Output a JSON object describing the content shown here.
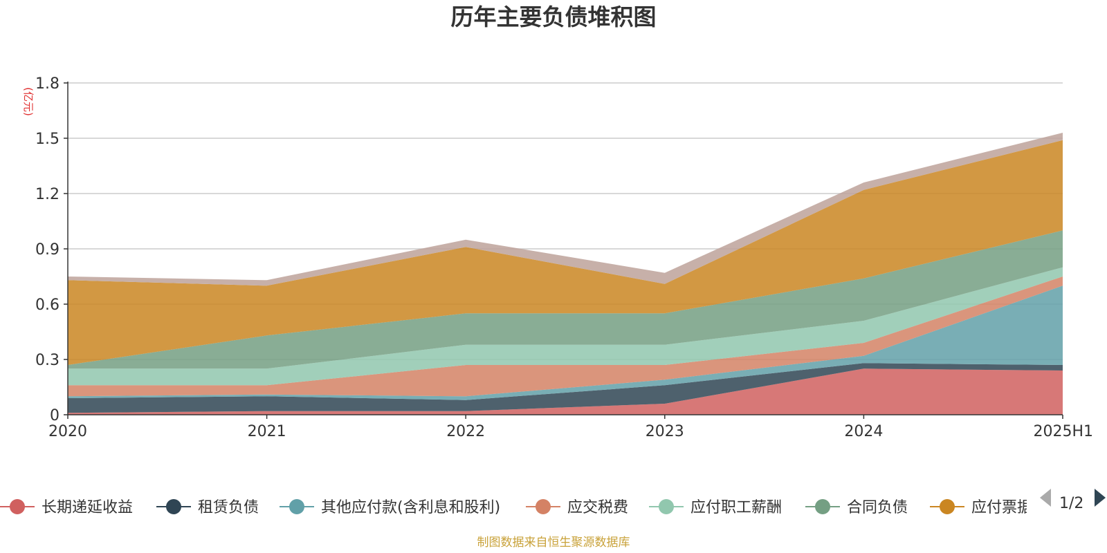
{
  "chart_data": {
    "type": "area",
    "stacked": true,
    "title": "历年主要负债堆积图",
    "unit_label": "(亿元)",
    "categories": [
      "2020",
      "2021",
      "2022",
      "2023",
      "2024",
      "2025H1"
    ],
    "ylim": [
      0,
      1.8
    ],
    "y_ticks": [
      "0",
      "0.3",
      "0.6",
      "0.9",
      "1.2",
      "1.5",
      "1.8"
    ],
    "grid": true,
    "legend_position": "bottom",
    "series": [
      {
        "name": "长期递延收益",
        "color": "#d0605f",
        "values": [
          0.01,
          0.02,
          0.02,
          0.06,
          0.25,
          0.24
        ]
      },
      {
        "name": "租赁负债",
        "color": "#2f4554",
        "values": [
          0.08,
          0.08,
          0.06,
          0.1,
          0.03,
          0.03
        ]
      },
      {
        "name": "其他应付款(含利息和股利)",
        "color": "#61a0a8",
        "values": [
          0.01,
          0.01,
          0.02,
          0.03,
          0.04,
          0.43
        ]
      },
      {
        "name": "应交税费",
        "color": "#d48265",
        "values": [
          0.06,
          0.05,
          0.17,
          0.08,
          0.07,
          0.05
        ]
      },
      {
        "name": "应付职工薪酬",
        "color": "#91c7ae",
        "values": [
          0.09,
          0.09,
          0.11,
          0.11,
          0.12,
          0.05
        ]
      },
      {
        "name": "合同负债",
        "color": "#749f83",
        "values": [
          0.02,
          0.18,
          0.17,
          0.17,
          0.23,
          0.2
        ]
      },
      {
        "name": "应付票据",
        "color": "#ca8622",
        "values": [
          0.46,
          0.27,
          0.36,
          0.16,
          0.48,
          0.49
        ]
      },
      {
        "name": "",
        "color": "#bda29a",
        "values": [
          0.02,
          0.03,
          0.04,
          0.06,
          0.04,
          0.04
        ]
      }
    ],
    "legend_visible": [
      "长期递延收益",
      "租赁负债",
      "其他应付款(含利息和股利)",
      "应交税费",
      "应付职工薪酬",
      "合同负债",
      "应付票据"
    ]
  },
  "legend_pager": "1/2",
  "source_note": "制图数据来自恒生聚源数据库"
}
